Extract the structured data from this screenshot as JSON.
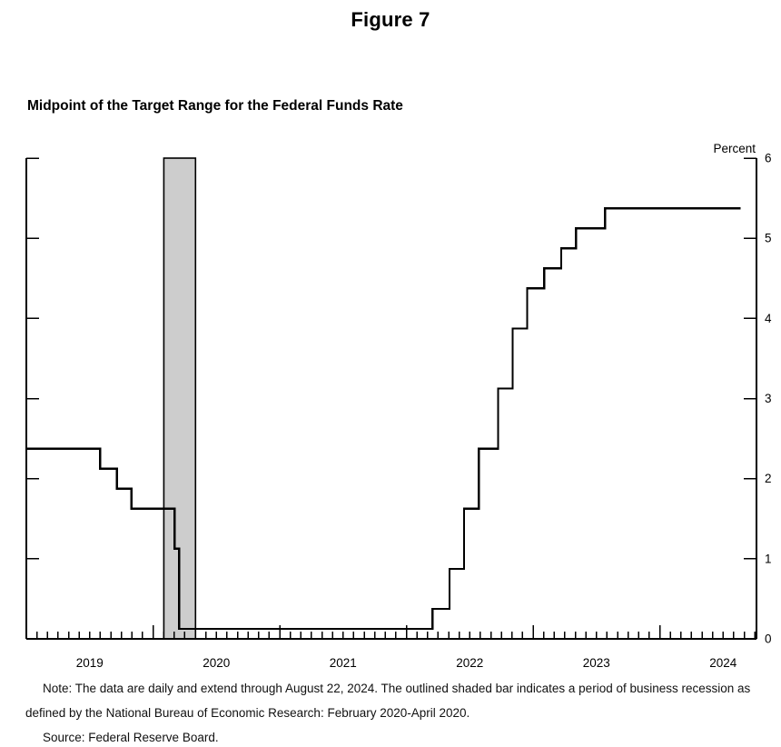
{
  "figure_title": "Figure 7",
  "chart_title": "Midpoint of the Target Range for the Federal Funds Rate",
  "notes": {
    "note_line1": "Note: The data are daily and extend through August 22, 2024. The outlined shaded bar indicates a period of business recession as",
    "note_line2": "defined by the National Bureau of Economic Research: February 2020-April 2020.",
    "source_line": "Source: Federal Reserve Board."
  },
  "chart_data": {
    "type": "line",
    "line_style": "step-after",
    "title": "Midpoint of the Target Range for the Federal Funds Rate",
    "xlabel": "",
    "ylabel": "Percent",
    "ylim": [
      0,
      6
    ],
    "y_ticks": [
      0,
      1,
      2,
      3,
      4,
      5,
      6
    ],
    "y_tick_side": "right",
    "xlim": [
      2019.0,
      2024.763
    ],
    "x_tick_years": [
      2019,
      2020,
      2021,
      2022,
      2023,
      2024
    ],
    "x_minor_tick_interval_months": 1,
    "grid": false,
    "legend": "none",
    "line_color": "#000000",
    "series": [
      {
        "name": "Midpoint of the target range for the federal funds rate (percent)",
        "color": "#000000",
        "points": [
          {
            "date": "2019-01-01",
            "x": 2019.0,
            "y": 2.375
          },
          {
            "date": "2019-08-01",
            "x": 2019.581,
            "y": 2.125
          },
          {
            "date": "2019-09-19",
            "x": 2019.715,
            "y": 1.875
          },
          {
            "date": "2019-10-31",
            "x": 2019.83,
            "y": 1.625
          },
          {
            "date": "2020-03-03",
            "x": 2020.169,
            "y": 1.125
          },
          {
            "date": "2020-03-16",
            "x": 2020.205,
            "y": 0.125
          },
          {
            "date": "2022-03-17",
            "x": 2022.205,
            "y": 0.375
          },
          {
            "date": "2022-05-05",
            "x": 2022.34,
            "y": 0.875
          },
          {
            "date": "2022-06-16",
            "x": 2022.455,
            "y": 1.625
          },
          {
            "date": "2022-07-28",
            "x": 2022.57,
            "y": 2.375
          },
          {
            "date": "2022-09-22",
            "x": 2022.723,
            "y": 3.125
          },
          {
            "date": "2022-11-03",
            "x": 2022.838,
            "y": 3.875
          },
          {
            "date": "2022-12-15",
            "x": 2022.953,
            "y": 4.375
          },
          {
            "date": "2023-02-02",
            "x": 2023.088,
            "y": 4.625
          },
          {
            "date": "2023-03-23",
            "x": 2023.222,
            "y": 4.875
          },
          {
            "date": "2023-05-04",
            "x": 2023.337,
            "y": 5.125
          },
          {
            "date": "2023-07-27",
            "x": 2023.567,
            "y": 5.375
          }
        ],
        "end_date": "2024-08-22",
        "end_x": 2024.639
      }
    ],
    "recession_band": {
      "label": "February 2020-April 2020",
      "x0": 2020.085,
      "x1": 2020.335,
      "fill": "#cdcdcd",
      "outline": "#000000"
    }
  }
}
